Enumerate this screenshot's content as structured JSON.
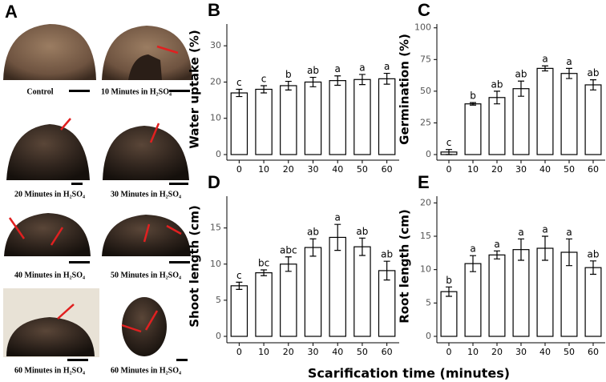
{
  "panel_a": {
    "label": "A",
    "captions": [
      "Control",
      "10 Minutes in H₂SO₄",
      "20 Minutes in H₂SO₄",
      "30 Minutes in H₂SO₄",
      "40 Minutes in H₂SO₄",
      "50 Minutes in H₂SO₄",
      "60 Minutes in H₂SO₄",
      "60 Minutes in H₂SO₄"
    ]
  },
  "x_axis_label": "Scarification time (minutes)",
  "chart_data": [
    {
      "type": "bar",
      "panel": "B",
      "ylabel": "Water uptake (%)",
      "categories": [
        "0",
        "10",
        "20",
        "30",
        "40",
        "50",
        "60"
      ],
      "values": [
        17,
        18,
        19,
        20,
        20.4,
        20.7,
        20.9
      ],
      "errors": [
        1,
        1,
        1.2,
        1.3,
        1.3,
        1.4,
        1.5
      ],
      "letters": [
        "c",
        "c",
        "b",
        "ab",
        "a",
        "a",
        "a"
      ],
      "ylim": [
        0,
        36
      ],
      "yticks": [
        0,
        10,
        20,
        30
      ],
      "color": "#ffffff"
    },
    {
      "type": "bar",
      "panel": "C",
      "ylabel": "Germination (%)",
      "categories": [
        "0",
        "10",
        "20",
        "30",
        "40",
        "50",
        "60"
      ],
      "values": [
        2,
        40,
        45,
        52,
        68,
        64,
        55
      ],
      "errors": [
        2,
        1,
        5,
        6,
        2,
        4,
        4
      ],
      "letters": [
        "c",
        "b",
        "ab",
        "ab",
        "a",
        "a",
        "ab"
      ],
      "ylim": [
        0,
        103
      ],
      "yticks": [
        0,
        25,
        50,
        75,
        100
      ],
      "color": "#ffffff"
    },
    {
      "type": "bar",
      "panel": "D",
      "ylabel": "Shoot length (cm)",
      "categories": [
        "0",
        "10",
        "20",
        "30",
        "40",
        "50",
        "60"
      ],
      "values": [
        7,
        8.8,
        10,
        12.3,
        13.7,
        12.4,
        9.1
      ],
      "errors": [
        0.5,
        0.4,
        1,
        1.2,
        1.8,
        1.2,
        1.3
      ],
      "letters": [
        "c",
        "bc",
        "abc",
        "ab",
        "a",
        "ab",
        "ab"
      ],
      "ylim": [
        0,
        19.4
      ],
      "yticks": [
        0,
        5,
        10,
        15
      ],
      "color": "#ffffff"
    },
    {
      "type": "bar",
      "panel": "E",
      "ylabel": "Root length (cm)",
      "categories": [
        "0",
        "10",
        "20",
        "30",
        "40",
        "50",
        "60"
      ],
      "values": [
        6.7,
        10.9,
        12.2,
        13,
        13.2,
        12.6,
        10.3
      ],
      "errors": [
        0.7,
        1.2,
        0.6,
        1.6,
        1.8,
        2,
        1
      ],
      "letters": [
        "b",
        "a",
        "a",
        "a",
        "a",
        "a",
        "ab"
      ],
      "ylim": [
        0,
        21
      ],
      "yticks": [
        0,
        5,
        10,
        15,
        20
      ],
      "color": "#ffffff"
    }
  ]
}
